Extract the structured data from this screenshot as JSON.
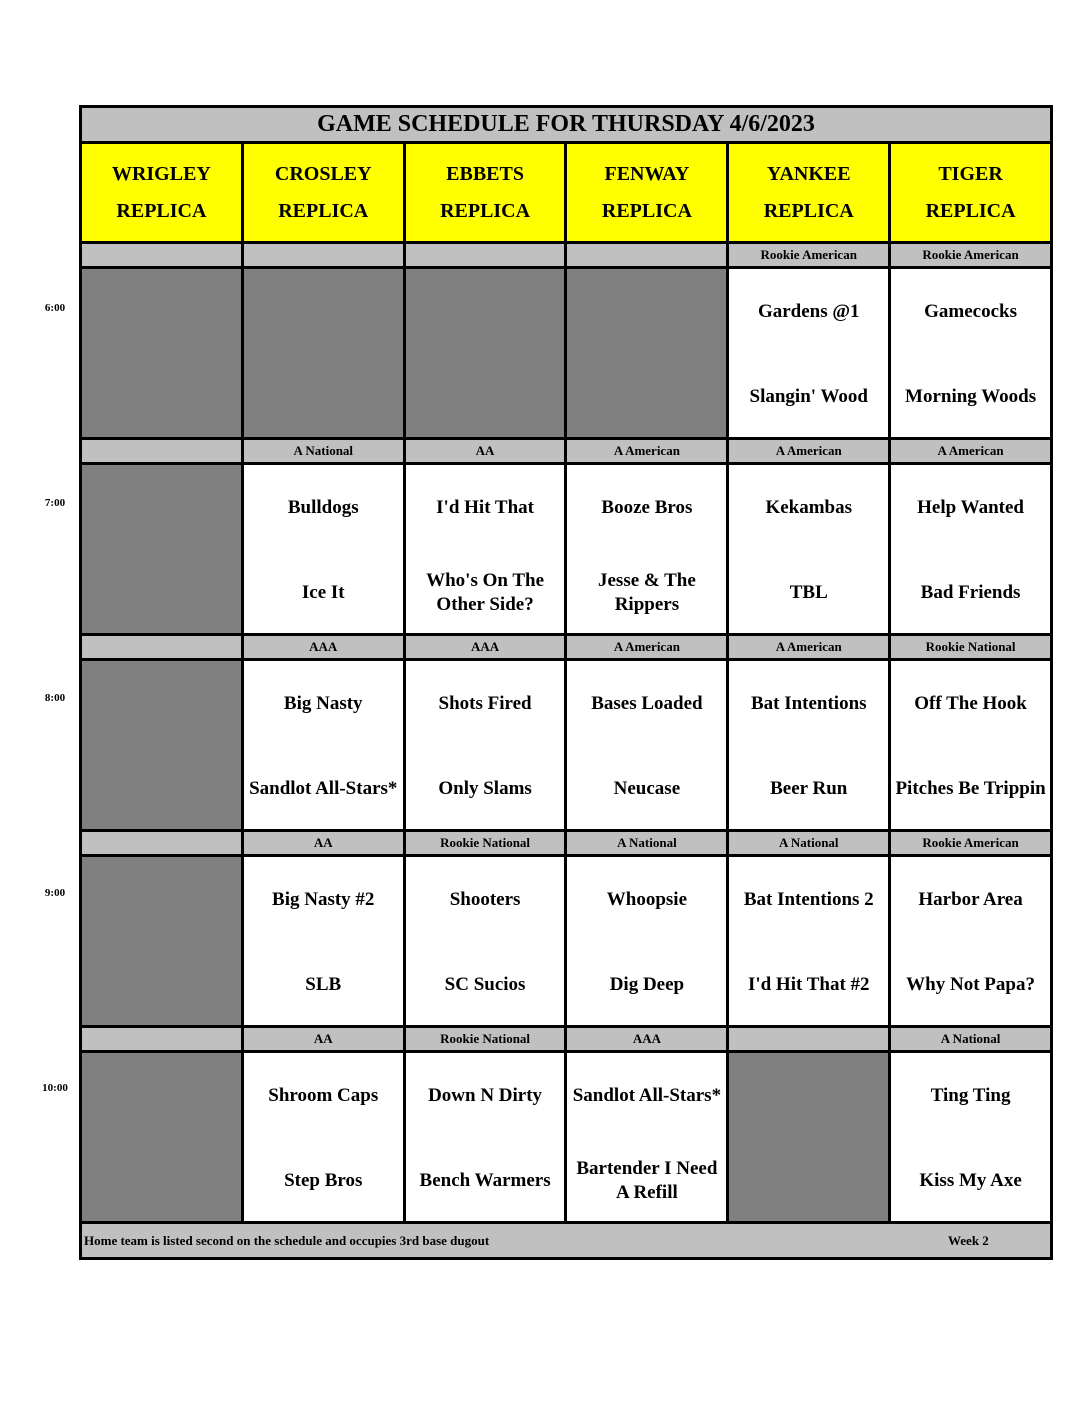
{
  "title": "GAME SCHEDULE FOR THURSDAY 4/6/2023",
  "fields": [
    {
      "name": "WRIGLEY",
      "sub": "REPLICA"
    },
    {
      "name": "CROSLEY",
      "sub": "REPLICA"
    },
    {
      "name": "EBBETS",
      "sub": "REPLICA"
    },
    {
      "name": "FENWAY",
      "sub": "REPLICA"
    },
    {
      "name": "YANKEE",
      "sub": "REPLICA"
    },
    {
      "name": "TIGER",
      "sub": "REPLICA"
    }
  ],
  "slots": [
    {
      "time": "6:00",
      "divisions": [
        "",
        "",
        "",
        "",
        "Rookie American",
        "Rookie American"
      ],
      "games": [
        null,
        null,
        null,
        null,
        {
          "away": "Gardens @1",
          "home": "Slangin' Wood"
        },
        {
          "away": "Gamecocks",
          "home": "Morning Woods"
        }
      ]
    },
    {
      "time": "7:00",
      "divisions": [
        "",
        "A National",
        "AA",
        "A American",
        "A American",
        "A American"
      ],
      "games": [
        null,
        {
          "away": "Bulldogs",
          "home": "Ice It"
        },
        {
          "away": "I'd Hit That",
          "home": "Who's On The Other Side?"
        },
        {
          "away": "Booze Bros",
          "home": "Jesse & The Rippers"
        },
        {
          "away": "Kekambas",
          "home": "TBL"
        },
        {
          "away": "Help Wanted",
          "home": "Bad Friends"
        }
      ]
    },
    {
      "time": "8:00",
      "divisions": [
        "",
        "AAA",
        "AAA",
        "A American",
        "A American",
        "Rookie National"
      ],
      "games": [
        null,
        {
          "away": "Big Nasty",
          "home": "Sandlot All-Stars*"
        },
        {
          "away": "Shots Fired",
          "home": "Only Slams"
        },
        {
          "away": "Bases Loaded",
          "home": "Neucase"
        },
        {
          "away": "Bat Intentions",
          "home": "Beer Run"
        },
        {
          "away": "Off The Hook",
          "home": "Pitches Be Trippin"
        }
      ]
    },
    {
      "time": "9:00",
      "divisions": [
        "",
        "AA",
        "Rookie National",
        "A National",
        "A National",
        "Rookie American"
      ],
      "games": [
        null,
        {
          "away": "Big Nasty #2",
          "home": "SLB"
        },
        {
          "away": "Shooters",
          "home": "SC Sucios"
        },
        {
          "away": "Whoopsie",
          "home": "Dig Deep"
        },
        {
          "away": "Bat Intentions 2",
          "home": "I'd Hit That #2"
        },
        {
          "away": "Harbor Area",
          "home": "Why Not Papa?"
        }
      ]
    },
    {
      "time": "10:00",
      "divisions": [
        "",
        "AA",
        "Rookie National",
        "AAA",
        "",
        "A National"
      ],
      "games": [
        null,
        {
          "away": "Shroom Caps",
          "home": "Step Bros"
        },
        {
          "away": "Down N Dirty",
          "home": "Bench Warmers"
        },
        {
          "away": "Sandlot All-Stars*",
          "home": "Bartender I Need A Refill"
        },
        null,
        {
          "away": "Ting Ting",
          "home": "Kiss My Axe"
        }
      ]
    }
  ],
  "footer": {
    "note": "Home team is listed second on the schedule and occupies 3rd base dugout",
    "week": "Week 2"
  },
  "colors": {
    "header": "#ffff00",
    "band": "#c0c0c0",
    "unused": "#808080"
  }
}
